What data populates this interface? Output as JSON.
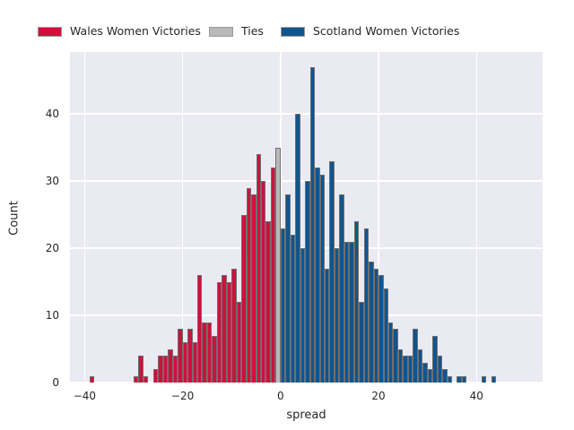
{
  "legend": {
    "items": [
      {
        "label": "Wales Women Victories",
        "color": "#d0103c",
        "swatch_icon": "red-square-swatch"
      },
      {
        "label": "Ties",
        "color": "#b9b9b9",
        "swatch_icon": "gray-square-swatch"
      },
      {
        "label": "Scotland Women Victories",
        "color": "#10558e",
        "swatch_icon": "blue-square-swatch"
      }
    ]
  },
  "chart_data": {
    "type": "bar",
    "subtype": "histogram",
    "title": "",
    "xlabel": "spread",
    "ylabel": "Count",
    "xlim": [
      -43,
      53.5
    ],
    "ylim": [
      0,
      49.2
    ],
    "xticks": [
      -40,
      -20,
      0,
      20,
      40
    ],
    "xtick_labels": [
      "−40",
      "−20",
      "0",
      "20",
      "40"
    ],
    "yticks": [
      0,
      10,
      20,
      30,
      40
    ],
    "ytick_labels": [
      "0",
      "10",
      "20",
      "30",
      "40"
    ],
    "bin_width": 1,
    "grid": true,
    "legend_position": "top",
    "plot_bg": "#eaeaf2",
    "grid_color": "#ffffff",
    "bar_edge_color": "#6f6f6f",
    "series": [
      {
        "name": "Wales Women Victories",
        "color": "#d0103c",
        "bins": [
          [
            -39,
            1
          ],
          [
            -30,
            1
          ],
          [
            -29,
            4
          ],
          [
            -28,
            1
          ],
          [
            -26,
            2
          ],
          [
            -25,
            4
          ],
          [
            -24,
            4
          ],
          [
            -23,
            5
          ],
          [
            -22,
            4
          ],
          [
            -21,
            8
          ],
          [
            -20,
            6
          ],
          [
            -19,
            8
          ],
          [
            -18,
            6
          ],
          [
            -17,
            16
          ],
          [
            -16,
            9
          ],
          [
            -15,
            9
          ],
          [
            -14,
            7
          ],
          [
            -13,
            15
          ],
          [
            -12,
            16
          ],
          [
            -11,
            15
          ],
          [
            -10,
            17
          ],
          [
            -9,
            12
          ],
          [
            -8,
            25
          ],
          [
            -7,
            29
          ],
          [
            -6,
            28
          ],
          [
            -5,
            34
          ],
          [
            -4,
            30
          ],
          [
            -3,
            24
          ],
          [
            -2,
            32
          ]
        ]
      },
      {
        "name": "Ties",
        "color": "#b9b9b9",
        "bins": [
          [
            -1,
            35
          ]
        ]
      },
      {
        "name": "Scotland Women Victories",
        "color": "#10558e",
        "bins": [
          [
            0,
            23
          ],
          [
            1,
            28
          ],
          [
            2,
            22
          ],
          [
            3,
            40
          ],
          [
            4,
            20
          ],
          [
            5,
            30
          ],
          [
            6,
            47
          ],
          [
            7,
            32
          ],
          [
            8,
            31
          ],
          [
            9,
            17
          ],
          [
            10,
            33
          ],
          [
            11,
            20
          ],
          [
            12,
            28
          ],
          [
            13,
            21
          ],
          [
            14,
            21
          ],
          [
            15,
            24
          ],
          [
            16,
            12
          ],
          [
            17,
            23
          ],
          [
            18,
            18
          ],
          [
            19,
            17
          ],
          [
            20,
            16
          ],
          [
            21,
            14
          ],
          [
            22,
            9
          ],
          [
            23,
            8
          ],
          [
            24,
            5
          ],
          [
            25,
            4
          ],
          [
            26,
            4
          ],
          [
            27,
            8
          ],
          [
            28,
            5
          ],
          [
            29,
            3
          ],
          [
            30,
            2
          ],
          [
            31,
            7
          ],
          [
            32,
            4
          ],
          [
            33,
            2
          ],
          [
            34,
            1
          ],
          [
            36,
            1
          ],
          [
            37,
            1
          ],
          [
            41,
            1
          ],
          [
            43,
            1
          ]
        ]
      }
    ]
  }
}
